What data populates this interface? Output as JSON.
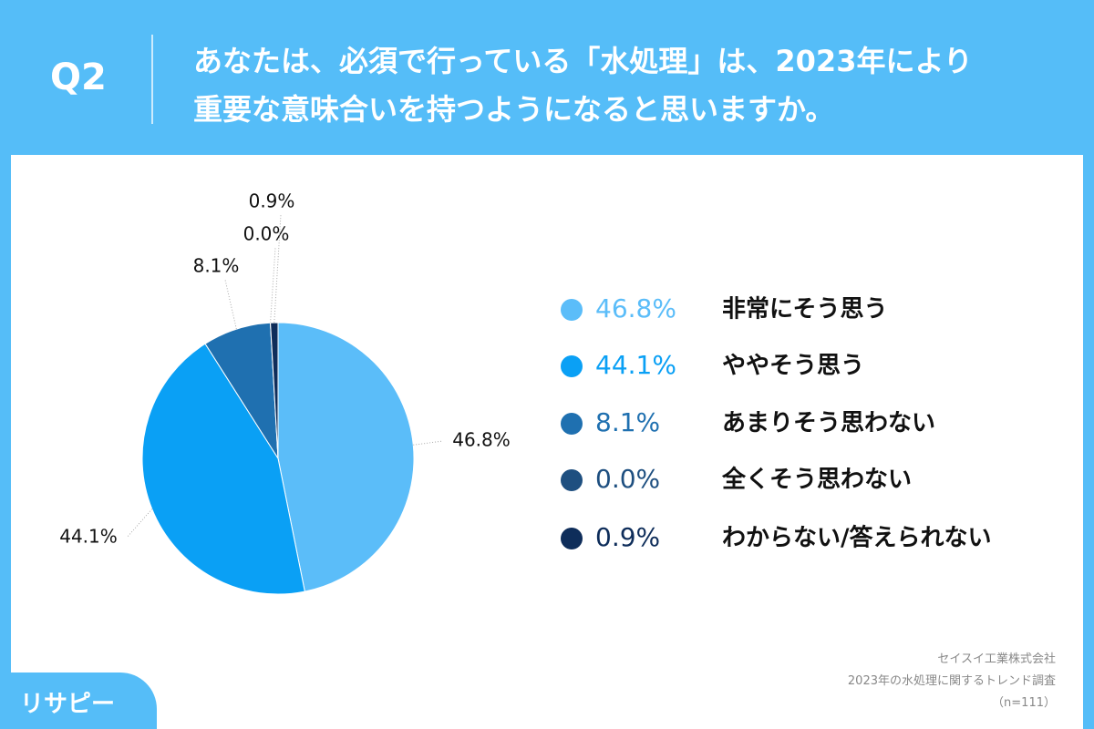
{
  "header": {
    "question": "Q2",
    "title": [
      "あなたは、必須で行っている「水処理」は、2023年により",
      "重要な意味合いを持つようになると思いますか。"
    ]
  },
  "chart_data": {
    "type": "pie",
    "categories": [
      "非常にそう思う",
      "ややそう思う",
      "あまりそう思わない",
      "全くそう思わない",
      "わからない/答えられない"
    ],
    "values": [
      46.8,
      44.1,
      8.1,
      0.0,
      0.9
    ],
    "value_labels": [
      "46.8%",
      "44.1%",
      "8.1%",
      "0.0%",
      "0.9%"
    ],
    "colors": [
      "#5bbdf9",
      "#0aa0f5",
      "#1f70b0",
      "#1e4f80",
      "#0e2d5a"
    ],
    "legend": "right"
  },
  "footer": {
    "lines": [
      "セイスイ工業株式会社",
      "2023年の水処理に関するトレンド調査",
      "（n=111）"
    ]
  },
  "logo": "リサピー"
}
